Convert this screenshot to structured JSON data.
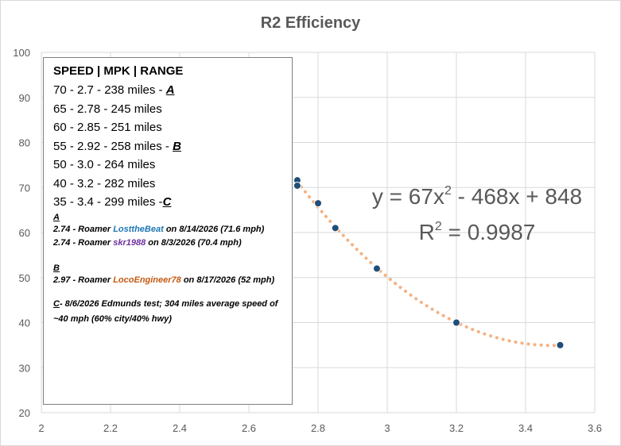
{
  "chart_data": {
    "type": "scatter",
    "title": "R2 Efficiency",
    "xlim": [
      2,
      3.6
    ],
    "ylim": [
      20,
      100
    ],
    "x_ticks": [
      "2",
      "2.2",
      "2.4",
      "2.6",
      "2.8",
      "3",
      "3.2",
      "3.4",
      "3.6"
    ],
    "y_ticks": [
      "20",
      "30",
      "40",
      "50",
      "60",
      "70",
      "80",
      "90",
      "100"
    ],
    "grid": true,
    "colors": {
      "points": "#1f4e79",
      "trendline": "#f4b183",
      "gridline": "#d9d9d9"
    },
    "points": [
      {
        "x": 2.74,
        "y": 71.6
      },
      {
        "x": 2.74,
        "y": 70.4
      },
      {
        "x": 2.8,
        "y": 66.5
      },
      {
        "x": 2.85,
        "y": 61
      },
      {
        "x": 2.97,
        "y": 52
      },
      {
        "x": 3.2,
        "y": 40
      },
      {
        "x": 3.5,
        "y": 35
      }
    ],
    "trendline": {
      "type": "polynomial",
      "equation_prefix": "y = 67x",
      "equation_exp": "2",
      "equation_suffix": " - 468x + 848",
      "r2_prefix": "R",
      "r2_exp": "2",
      "r2_suffix": " = 0.9987",
      "coefficients": [
        67,
        -468,
        848
      ],
      "x_range": [
        2.74,
        3.5
      ]
    }
  },
  "annotation": {
    "header": "SPEED | MPK | RANGE",
    "rows": [
      {
        "text": "70 - 2.7 - 238 miles - ",
        "mark": "A"
      },
      {
        "text": "65 - 2.78 - 245 miles",
        "mark": ""
      },
      {
        "text": "60 - 2.85 - 251 miles",
        "mark": ""
      },
      {
        "text": "55 - 2.92 - 258 miles  - ",
        "mark": "B"
      },
      {
        "text": "50 - 3.0 - 264 miles",
        "mark": ""
      },
      {
        "text": "40 - 3.2 - 282 miles",
        "mark": ""
      },
      {
        "text": "35 - 3.4 - 299 miles -",
        "mark": "C"
      }
    ],
    "note_a_letter": "A",
    "note_a1": {
      "pre": "2.74 - Roamer ",
      "user": "LosttheBeat",
      "post": " on 8/14/2026 (71.6 mph)"
    },
    "note_a2": {
      "pre": "2.74 - Roamer ",
      "user": "skr1988",
      "post": " on 8/3/2026 (70.4 mph)"
    },
    "note_b_letter": "B",
    "note_b1": {
      "pre": "2.97 - Roamer ",
      "user": "LocoEngineer78",
      "post": " on 8/17/2026 (52 mph)"
    },
    "note_c_letter": "C",
    "note_c1": "- 8/6/2026 Edmunds test; 304 miles average speed of ~40 mph (60% city/40% hwy)"
  }
}
